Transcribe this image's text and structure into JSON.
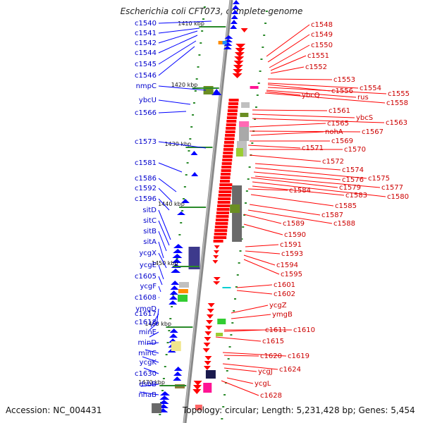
{
  "title": "Escherichia coli CFT073, complete genome",
  "footer": {
    "accession": "Accession: NC_004431",
    "topology": "Topology: circular; Length: 5,231,428 bp; Genes: 5,454"
  },
  "colors": {
    "forward": "#0000ff",
    "reverse": "#ff0000",
    "backbone": "#888888",
    "tick": "#2a8a2a"
  },
  "kbp_marks": [
    "1410 kbp",
    "1420 kbp",
    "1430 kbp",
    "1440 kbp",
    "1450 kbp",
    "1460 kbp",
    "1470 kbp"
  ],
  "left_labels": [
    "c1540",
    "c1541",
    "c1542",
    "c1544",
    "c1545",
    "c1546",
    "nmpC",
    "ybcU",
    "c1566",
    "c1573",
    "c1581",
    "c1586",
    "c1592",
    "c1596",
    "sitD",
    "sitC",
    "sitB",
    "sitA",
    "ycgX",
    "ycgE",
    "c1605",
    "ycgF",
    "c1608",
    "ymgD",
    "c1617",
    "c1618",
    "minE",
    "minD",
    "minC",
    "ycgK",
    "c1630",
    "dsbB",
    "nhaB"
  ],
  "right_labels": [
    "c1548",
    "c1549",
    "c1550",
    "c1551",
    "c1552",
    "c1553",
    "c1554",
    "c1555",
    "c1556",
    "rus",
    "ybcQ",
    "c1558",
    "c1561",
    "ybcS",
    "c1563",
    "c1565",
    "c1567",
    "nohA",
    "c1569",
    "c1571",
    "c1570",
    "c1572",
    "c1574",
    "c1575",
    "c1576",
    "c1577",
    "c1579",
    "c1580",
    "c1583",
    "c1584",
    "c1585",
    "c1587",
    "c1588",
    "c1589",
    "c1590",
    "c1591",
    "c1593",
    "c1594",
    "c1595",
    "c1601",
    "c1602",
    "ycgZ",
    "ymgB",
    "c1610",
    "c1611",
    "c1615",
    "c1619",
    "c1620",
    "c1624",
    "ycgJ",
    "ycgL",
    "c1628"
  ]
}
